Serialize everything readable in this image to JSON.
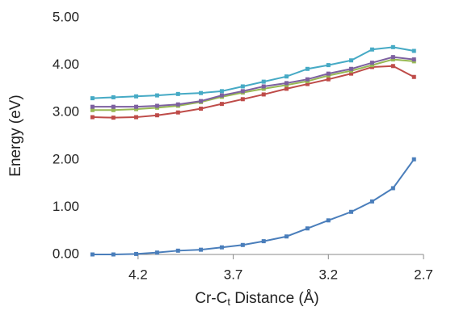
{
  "chart_data": {
    "type": "line",
    "y_label": "Energy (eV)",
    "x_label_parts": [
      "Cr-C",
      "t",
      " Distance (Å)"
    ],
    "x": [
      4.44,
      4.33,
      4.21,
      4.1,
      3.99,
      3.87,
      3.76,
      3.65,
      3.54,
      3.42,
      3.31,
      3.2,
      3.08,
      2.97,
      2.86,
      2.75
    ],
    "series": [
      {
        "color": "#4a7ebb",
        "values": [
          0,
          0,
          0.01,
          0.04,
          0.08,
          0.1,
          0.15,
          0.2,
          0.28,
          0.38,
          0.55,
          0.72,
          0.9,
          1.12,
          1.4,
          2.01
        ]
      },
      {
        "color": "#be4b48",
        "values": [
          2.9,
          2.89,
          2.9,
          2.94,
          3.0,
          3.08,
          3.18,
          3.28,
          3.38,
          3.5,
          3.6,
          3.7,
          3.82,
          3.96,
          3.98,
          3.75
        ]
      },
      {
        "color": "#98b954",
        "values": [
          3.05,
          3.05,
          3.07,
          3.1,
          3.14,
          3.22,
          3.33,
          3.42,
          3.5,
          3.58,
          3.66,
          3.78,
          3.88,
          4.0,
          4.12,
          4.08
        ]
      },
      {
        "color": "#7d60a0",
        "values": [
          3.12,
          3.12,
          3.12,
          3.14,
          3.17,
          3.24,
          3.36,
          3.45,
          3.55,
          3.62,
          3.7,
          3.82,
          3.92,
          4.05,
          4.17,
          4.12
        ]
      },
      {
        "color": "#46aac5",
        "values": [
          3.3,
          3.32,
          3.34,
          3.36,
          3.39,
          3.41,
          3.45,
          3.55,
          3.65,
          3.76,
          3.92,
          4.0,
          4.1,
          4.33,
          4.38,
          4.3
        ]
      }
    ],
    "xlim": [
      4.45,
      2.7
    ],
    "xticks": [
      4.2,
      3.7,
      3.2,
      2.7
    ],
    "ylim": [
      0,
      5
    ],
    "yticks": [
      {
        "value": 0,
        "label": "0.00"
      },
      {
        "value": 1,
        "label": "1.00"
      },
      {
        "value": 2,
        "label": "2.00"
      },
      {
        "value": 3,
        "label": "3.00"
      },
      {
        "value": 4,
        "label": "4.00"
      },
      {
        "value": 5,
        "label": "5.00"
      }
    ],
    "grid": false
  }
}
